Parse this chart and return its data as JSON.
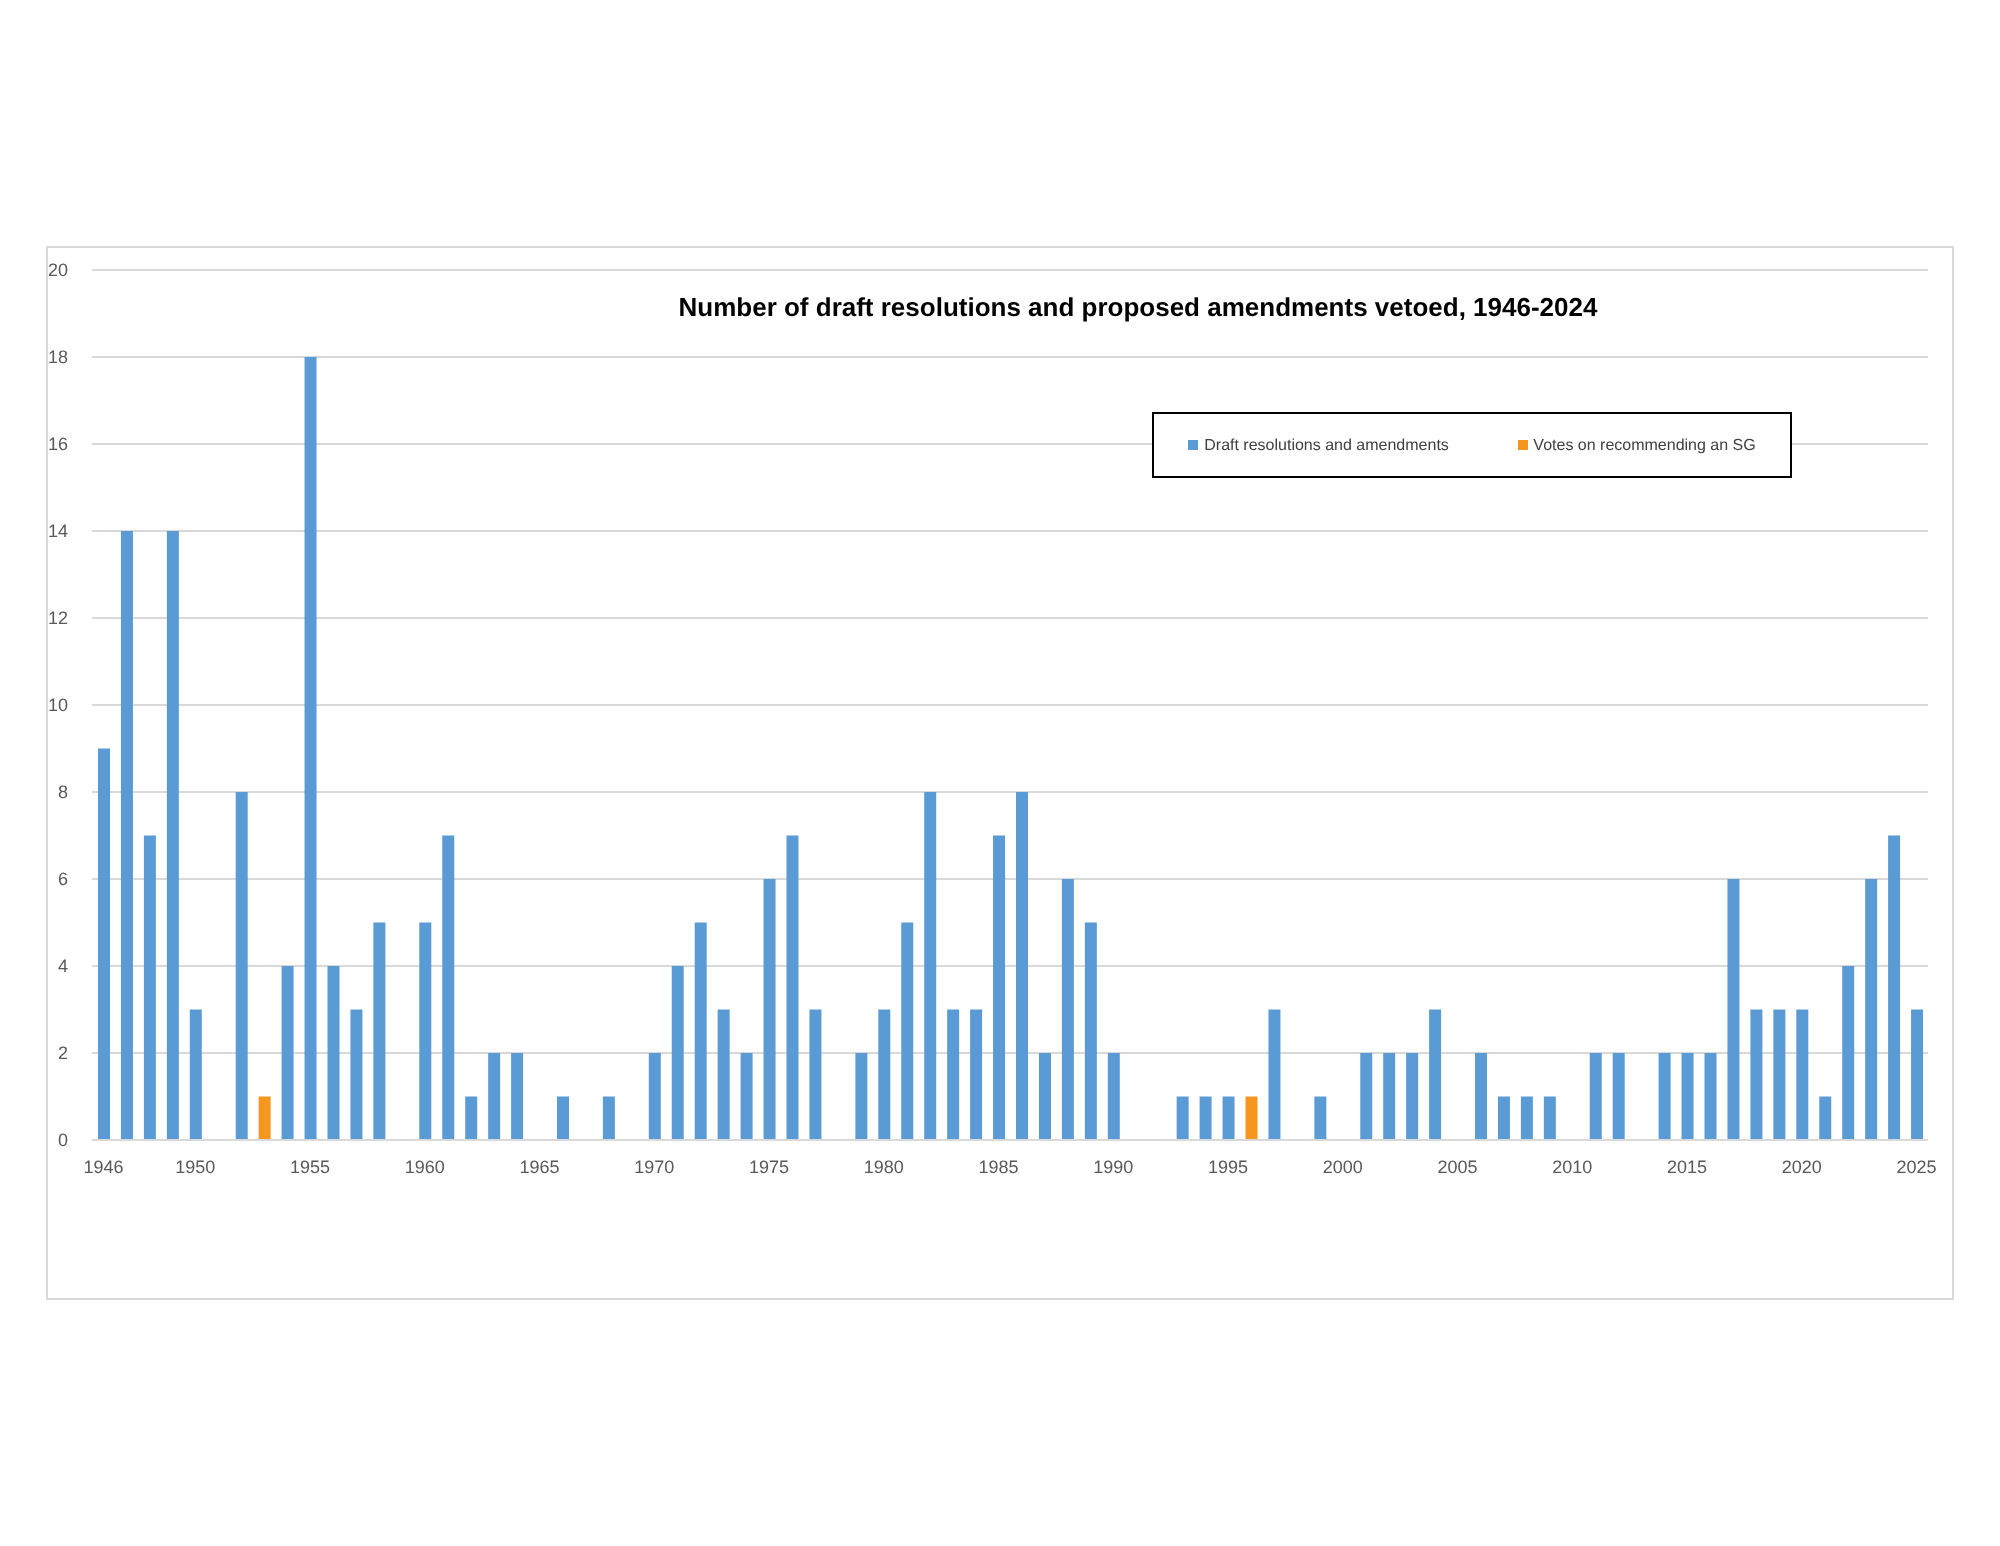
{
  "chart_data": {
    "type": "bar",
    "title": "Number of draft resolutions and proposed amendments vetoed, 1946-2024",
    "categories": [
      "1946",
      null,
      null,
      null,
      "1950",
      null,
      null,
      null,
      null,
      "1955",
      null,
      null,
      null,
      null,
      "1960",
      null,
      null,
      null,
      null,
      "1965",
      null,
      null,
      null,
      null,
      "1970",
      null,
      null,
      null,
      null,
      "1975",
      null,
      null,
      null,
      null,
      "1980",
      null,
      null,
      null,
      null,
      "1985",
      null,
      null,
      null,
      null,
      "1990",
      null,
      null,
      null,
      null,
      "1995",
      null,
      null,
      null,
      null,
      "2000",
      null,
      null,
      null,
      null,
      "2005",
      null,
      null,
      null,
      null,
      "2010",
      null,
      null,
      null,
      null,
      "2015",
      null,
      null,
      null,
      null,
      "2020",
      null,
      null,
      null,
      null,
      "2025"
    ],
    "series": [
      {
        "name": "Draft resolutions and amendments",
        "color": "#5b9bd5",
        "values": [
          9,
          14,
          7,
          14,
          3,
          null,
          8,
          null,
          4,
          18,
          4,
          3,
          5,
          null,
          5,
          7,
          1,
          2,
          2,
          null,
          1,
          null,
          1,
          null,
          2,
          4,
          5,
          3,
          2,
          6,
          7,
          3,
          null,
          2,
          3,
          5,
          8,
          3,
          3,
          7,
          8,
          2,
          6,
          5,
          2,
          null,
          null,
          1,
          1,
          1,
          null,
          3,
          null,
          1,
          null,
          2,
          2,
          2,
          3,
          null,
          2,
          1,
          1,
          1,
          null,
          2,
          2,
          null,
          2,
          2,
          2,
          6,
          3,
          3,
          3,
          1,
          4,
          6,
          7,
          3
        ]
      },
      {
        "name": "Votes on recommending an SG",
        "color": "#f5961e",
        "values": [
          null,
          null,
          null,
          null,
          null,
          null,
          null,
          1,
          null,
          null,
          null,
          null,
          null,
          null,
          null,
          null,
          null,
          null,
          null,
          null,
          null,
          null,
          null,
          null,
          null,
          null,
          null,
          null,
          null,
          null,
          null,
          null,
          null,
          null,
          null,
          null,
          null,
          null,
          null,
          null,
          null,
          null,
          null,
          null,
          null,
          null,
          null,
          null,
          null,
          null,
          1,
          null,
          null,
          null,
          null,
          null,
          null,
          null,
          null,
          null,
          null,
          null,
          null,
          null,
          null,
          null,
          null,
          null,
          null,
          null,
          null,
          null,
          null,
          null,
          null,
          null,
          null,
          null,
          null,
          null
        ]
      }
    ],
    "stacked": true,
    "ylim": [
      0,
      20
    ],
    "yticks": [
      0,
      2,
      4,
      6,
      8,
      10,
      12,
      14,
      16,
      18,
      20
    ],
    "grid": "y",
    "legend": "top right"
  }
}
